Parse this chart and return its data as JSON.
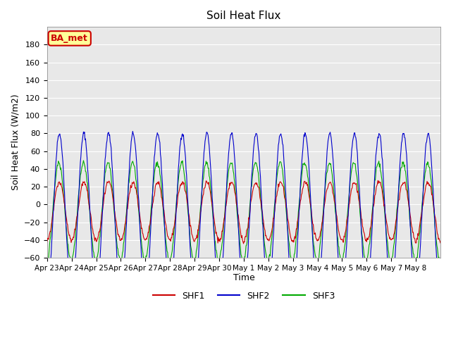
{
  "title": "Soil Heat Flux",
  "xlabel": "Time",
  "ylabel": "Soil Heat Flux (W/m2)",
  "ylim": [
    -60,
    200
  ],
  "yticks": [
    -60,
    -40,
    -20,
    0,
    20,
    40,
    60,
    80,
    100,
    120,
    140,
    160,
    180
  ],
  "xtick_labels": [
    "Apr 23",
    "Apr 24",
    "Apr 25",
    "Apr 26",
    "Apr 27",
    "Apr 28",
    "Apr 29",
    "Apr 30",
    "May 1",
    "May 2",
    "May 3",
    "May 4",
    "May 5",
    "May 6",
    "May 7",
    "May 8"
  ],
  "color_shf1": "#cc0000",
  "color_shf2": "#0000cc",
  "color_shf3": "#00aa00",
  "annotation_text": "BA_met",
  "annotation_bg": "#ffff99",
  "annotation_border": "#cc0000",
  "n_days": 16,
  "pts_per_day": 48,
  "background_color": "#e8e8e8",
  "grid_color": "#ffffff",
  "legend_labels": [
    "SHF1",
    "SHF2",
    "SHF3"
  ]
}
